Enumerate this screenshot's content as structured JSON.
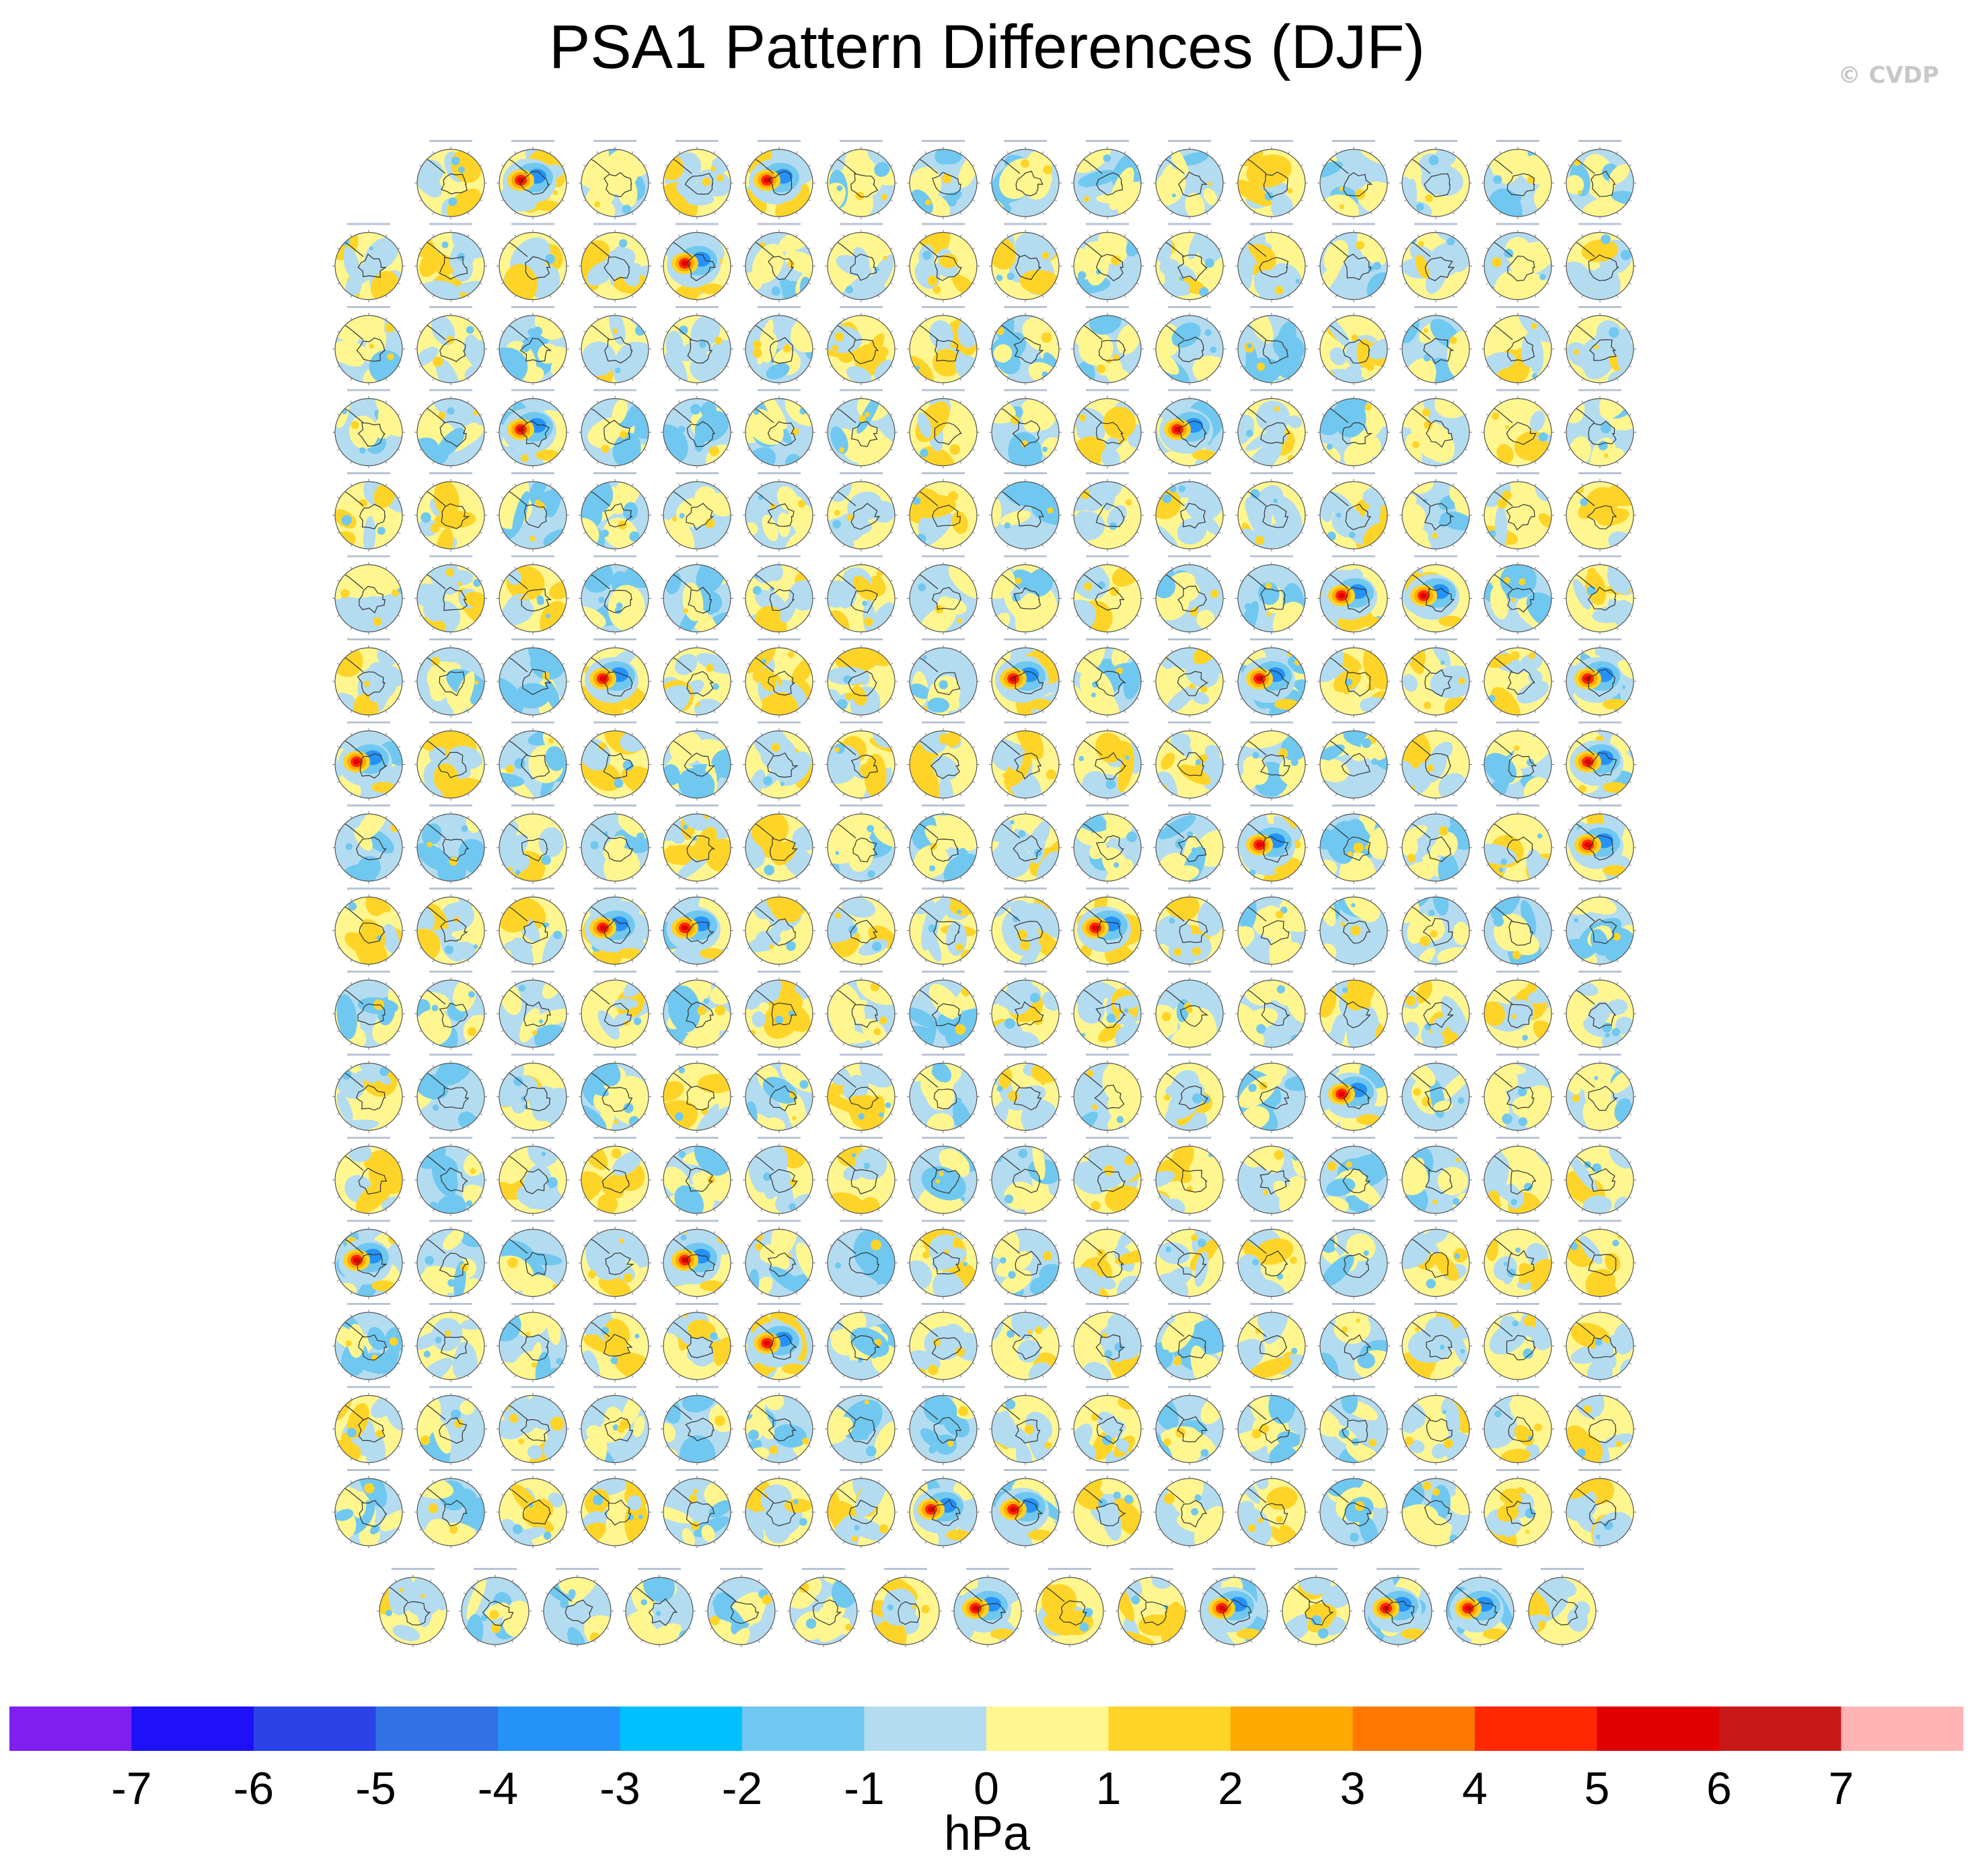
{
  "title": "PSA1 Pattern Differences (DJF)",
  "watermark": "© CVDP",
  "chart_data": {
    "type": "heatmap",
    "description_of_layout": "",
    "grid": {
      "rows": 18,
      "panels_per_row": [
        15,
        16,
        16,
        16,
        16,
        16,
        16,
        16,
        16,
        16,
        16,
        16,
        16,
        16,
        16,
        16,
        16,
        15
      ]
    },
    "projection": "south-polar stereographic",
    "strong_anomaly_panels": [
      [
        0,
        1
      ],
      [
        0,
        4
      ],
      [
        1,
        4
      ],
      [
        3,
        2
      ],
      [
        3,
        10
      ],
      [
        5,
        12
      ],
      [
        5,
        13
      ],
      [
        6,
        3
      ],
      [
        6,
        8
      ],
      [
        6,
        11
      ],
      [
        6,
        15
      ],
      [
        7,
        0
      ],
      [
        7,
        15
      ],
      [
        8,
        11
      ],
      [
        8,
        15
      ],
      [
        9,
        3
      ],
      [
        9,
        4
      ],
      [
        9,
        9
      ],
      [
        11,
        12
      ],
      [
        13,
        0
      ],
      [
        13,
        4
      ],
      [
        14,
        5
      ],
      [
        16,
        7
      ],
      [
        16,
        8
      ],
      [
        17,
        7
      ],
      [
        17,
        10
      ],
      [
        17,
        12
      ],
      [
        17,
        13
      ]
    ],
    "colorbar": {
      "label": "hPa",
      "tick_labels": [
        "-7",
        "-6",
        "-5",
        "-4",
        "-3",
        "-2",
        "-1",
        "0",
        "1",
        "2",
        "3",
        "4",
        "5",
        "6",
        "7"
      ],
      "colors": [
        "#8020f0",
        "#1e10f8",
        "#2a42e6",
        "#3270e6",
        "#2492f8",
        "#00c0ff",
        "#70c8f0",
        "#b4dcf0",
        "#fff690",
        "#ffd428",
        "#ffaa00",
        "#ff7800",
        "#ff2800",
        "#e00000",
        "#c81818",
        "#ffb4b4"
      ]
    }
  }
}
